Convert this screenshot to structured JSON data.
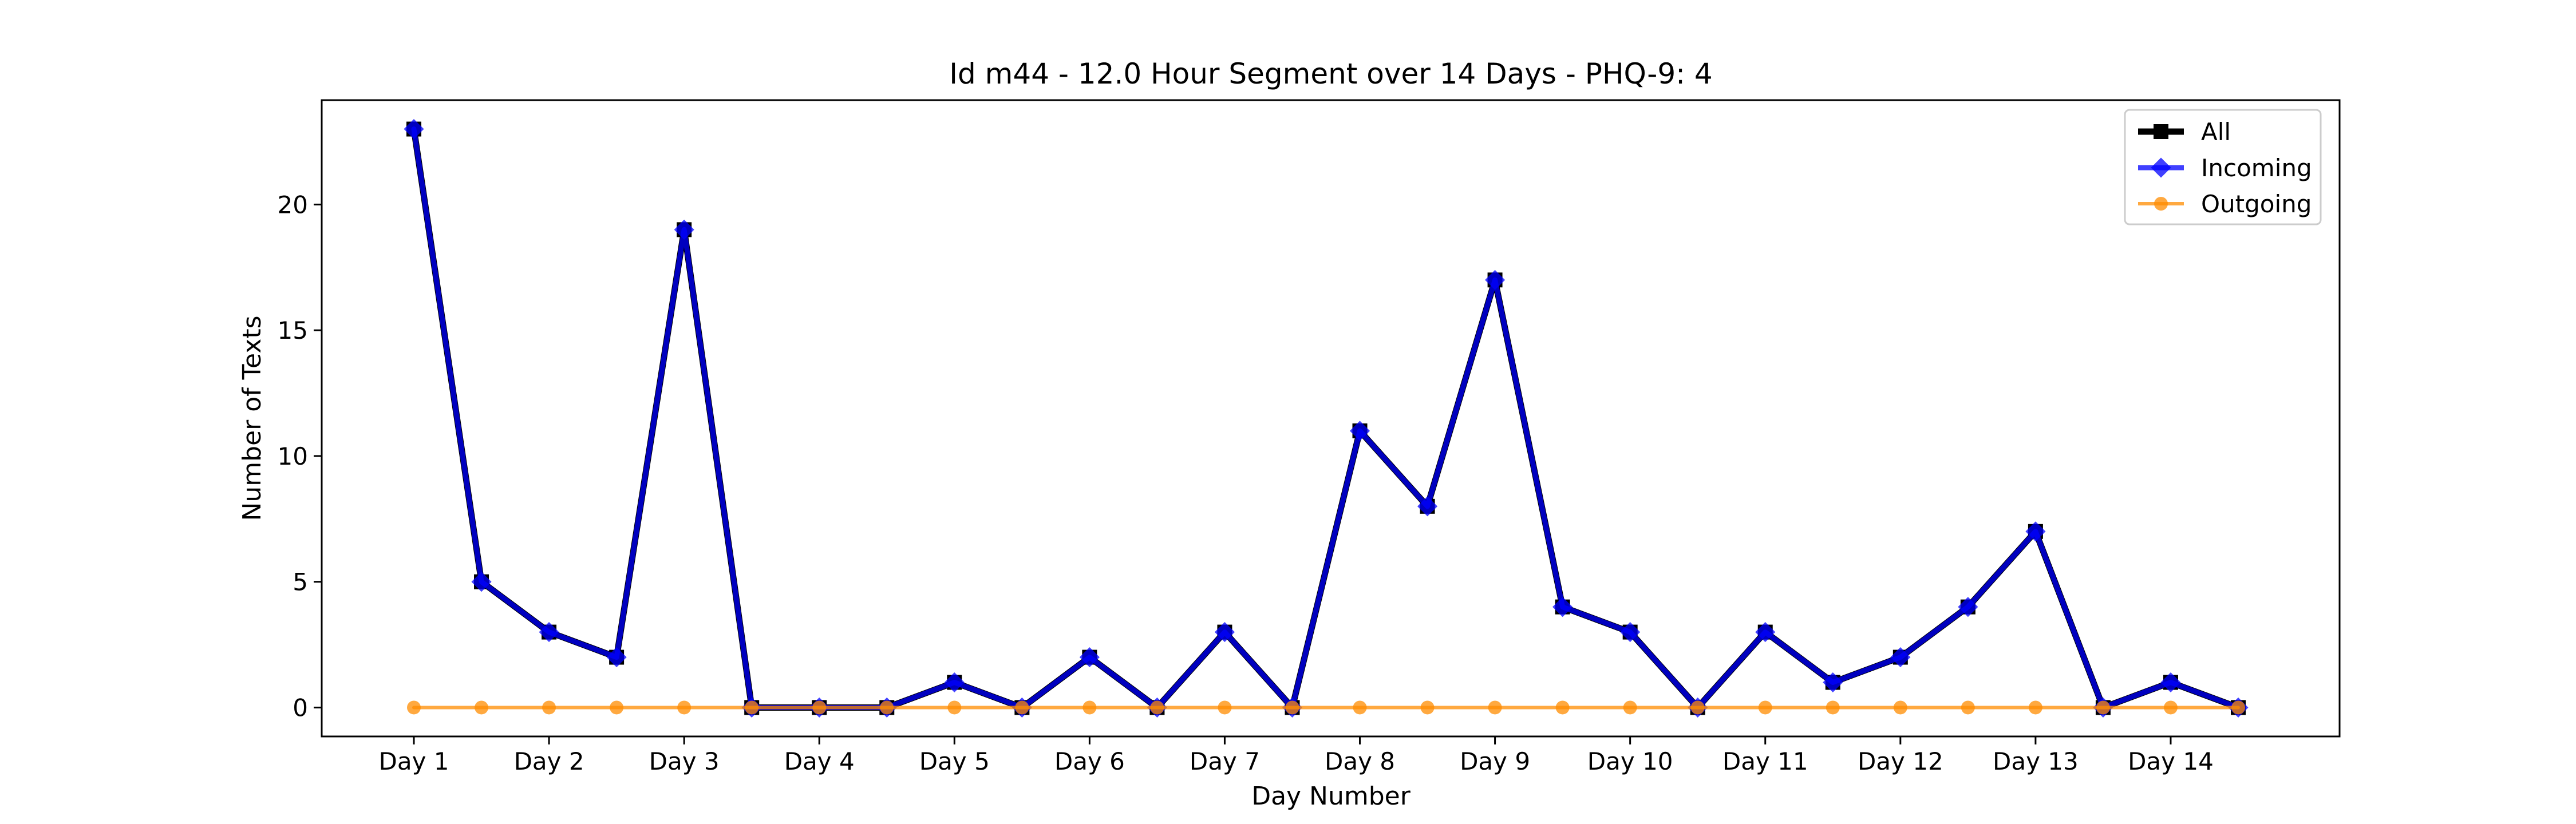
{
  "chart_data": {
    "type": "line",
    "title": "Id m44 - 12.0 Hour Segment over 14 Days - PHQ-9: 4",
    "xlabel": "Day Number",
    "ylabel": "Number of Texts",
    "ylim": [
      -1.15,
      24.15
    ],
    "yticks": [
      0,
      5,
      10,
      15,
      20
    ],
    "tick_labels": [
      "Day 1",
      "Day 2",
      "Day 3",
      "Day 4",
      "Day 5",
      "Day 6",
      "Day 7",
      "Day 8",
      "Day 9",
      "Day 10",
      "Day 11",
      "Day 12",
      "Day 13",
      "Day 14"
    ],
    "grid": false,
    "legend_position": "top-right",
    "series": [
      {
        "name": "All",
        "color": "#000000",
        "marker": "square",
        "values": [
          23,
          5,
          3,
          2,
          19,
          0,
          0,
          0,
          1,
          0,
          2,
          0,
          3,
          0,
          11,
          8,
          17,
          4,
          3,
          0,
          3,
          1,
          2,
          4,
          7,
          0,
          1,
          0
        ]
      },
      {
        "name": "Incoming",
        "color": "#0000ff",
        "marker": "diamond",
        "values": [
          23,
          5,
          3,
          2,
          19,
          0,
          0,
          0,
          1,
          0,
          2,
          0,
          3,
          0,
          11,
          8,
          17,
          4,
          3,
          0,
          3,
          1,
          2,
          4,
          7,
          0,
          1,
          0
        ]
      },
      {
        "name": "Outgoing",
        "color": "#ff8c00",
        "marker": "circle",
        "values": [
          0,
          0,
          0,
          0,
          0,
          0,
          0,
          0,
          0,
          0,
          0,
          0,
          0,
          0,
          0,
          0,
          0,
          0,
          0,
          0,
          0,
          0,
          0,
          0,
          0,
          0,
          0,
          0
        ]
      }
    ]
  }
}
